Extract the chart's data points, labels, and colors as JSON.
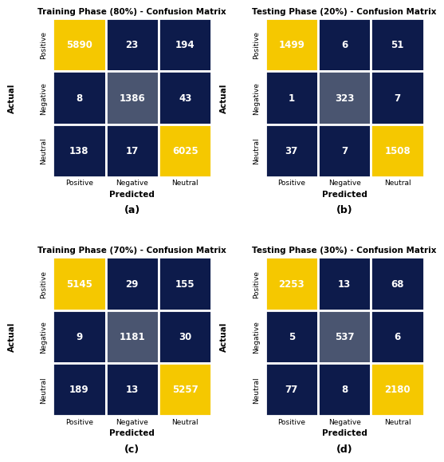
{
  "panels": [
    {
      "title": "Training Phase (80%) - Confusion Matrix",
      "label": "(a)",
      "matrix": [
        [
          5890,
          23,
          194
        ],
        [
          8,
          1386,
          43
        ],
        [
          138,
          17,
          6025
        ]
      ]
    },
    {
      "title": "Testing Phase (20%) - Confusion Matrix",
      "label": "(b)",
      "matrix": [
        [
          1499,
          6,
          51
        ],
        [
          1,
          323,
          7
        ],
        [
          37,
          7,
          1508
        ]
      ]
    },
    {
      "title": "Training Phase (70%) - Confusion Matrix",
      "label": "(c)",
      "matrix": [
        [
          5145,
          29,
          155
        ],
        [
          9,
          1181,
          30
        ],
        [
          189,
          13,
          5257
        ]
      ]
    },
    {
      "title": "Testing Phase (30%) - Confusion Matrix",
      "label": "(d)",
      "matrix": [
        [
          2253,
          13,
          68
        ],
        [
          5,
          537,
          6
        ],
        [
          77,
          8,
          2180
        ]
      ]
    }
  ],
  "class_labels": [
    "Positive",
    "Negative",
    "Neutral"
  ],
  "xlabel": "Predicted",
  "ylabel": "Actual",
  "color_diagonal_yellow": "#F5C800",
  "color_diagonal_mid": "#4A5570",
  "color_off": "#0D1B4B",
  "text_color": "#FFFFFF",
  "title_fontsize": 7.5,
  "axis_label_fontsize": 7.5,
  "tick_fontsize": 6.5,
  "value_fontsize": 8.5,
  "caption_fontsize": 9,
  "background_color": "#FFFFFF",
  "cell_edge_color": "#FFFFFF",
  "cell_edge_width": 2.0
}
